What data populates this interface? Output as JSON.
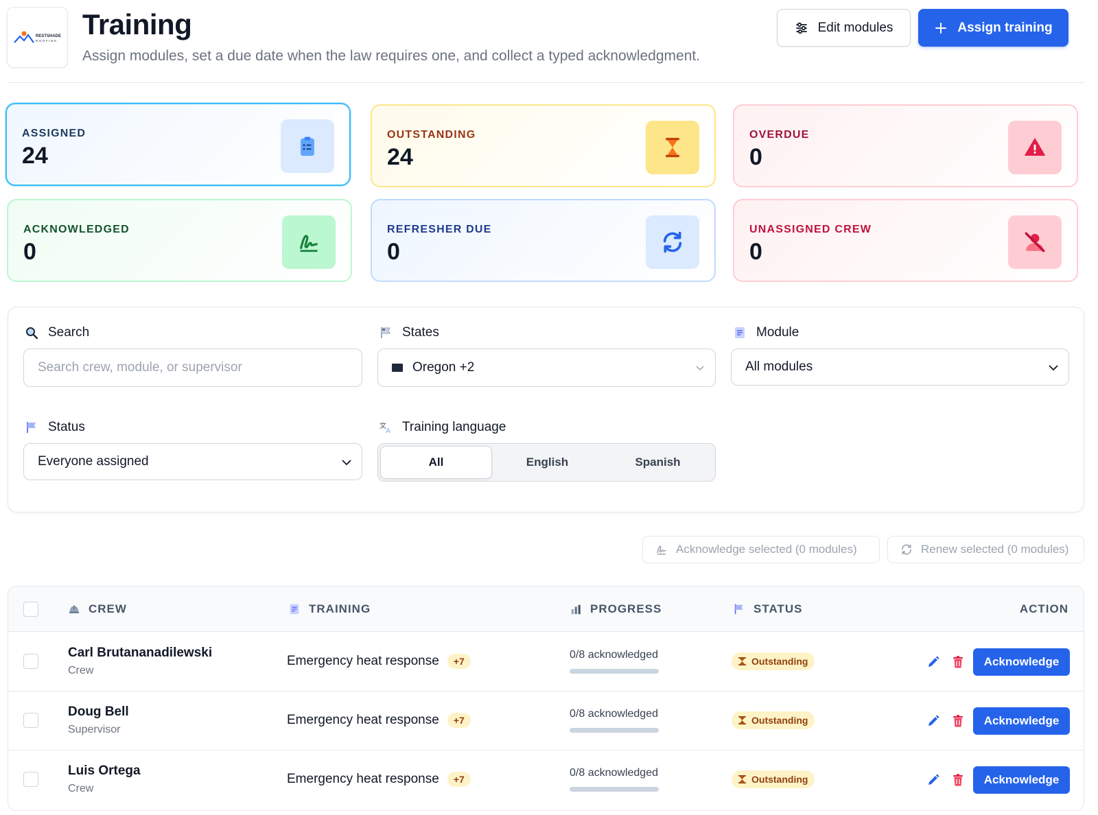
{
  "header": {
    "title": "Training",
    "subtitle": "Assign modules, set a due date when the law requires one, and collect a typed acknowledgment.",
    "edit_label": "Edit modules",
    "assign_label": "Assign training",
    "logo_text": "RESTSHADE ROOFING"
  },
  "stats": [
    {
      "label": "ASSIGNED",
      "value": "24",
      "icon": "clipboard-icon"
    },
    {
      "label": "OUTSTANDING",
      "value": "24",
      "icon": "hourglass-icon"
    },
    {
      "label": "OVERDUE",
      "value": "0",
      "icon": "warning-icon"
    },
    {
      "label": "ACKNOWLEDGED",
      "value": "0",
      "icon": "signature-icon"
    },
    {
      "label": "REFRESHER DUE",
      "value": "0",
      "icon": "refresh-icon"
    },
    {
      "label": "UNASSIGNED CREW",
      "value": "0",
      "icon": "user-off-icon"
    }
  ],
  "filters": {
    "search_label": "Search",
    "search_placeholder": "Search crew, module, or supervisor",
    "states_label": "States",
    "states_value": "Oregon +2",
    "module_label": "Module",
    "module_value": "All modules",
    "status_label": "Status",
    "status_value": "Everyone assigned",
    "language_label": "Training language",
    "language_options": [
      "All",
      "English",
      "Spanish"
    ],
    "language_selected": "All"
  },
  "bulk": {
    "acknowledge": "Acknowledge selected (0 modules)",
    "renew": "Renew selected (0 modules)"
  },
  "table": {
    "headers": {
      "crew": "CREW",
      "training": "TRAINING",
      "progress": "PROGRESS",
      "status": "STATUS",
      "action": "ACTION"
    },
    "rows": [
      {
        "name": "Carl Brutananadilewski",
        "role": "Crew",
        "training": "Emergency heat response",
        "more": "+7",
        "progress": "0/8 acknowledged",
        "progress_fraction": 0,
        "status": "Outstanding",
        "action": "Acknowledge"
      },
      {
        "name": "Doug Bell",
        "role": "Supervisor",
        "training": "Emergency heat response",
        "more": "+7",
        "progress": "0/8 acknowledged",
        "progress_fraction": 0,
        "status": "Outstanding",
        "action": "Acknowledge"
      },
      {
        "name": "Luis Ortega",
        "role": "Crew",
        "training": "Emergency heat response",
        "more": "+7",
        "progress": "0/8 acknowledged",
        "progress_fraction": 0,
        "status": "Outstanding",
        "action": "Acknowledge"
      }
    ]
  },
  "colors": {
    "primary": "#2563eb",
    "outstanding_bg": "#fef3c7",
    "outstanding_text": "#92400e"
  }
}
